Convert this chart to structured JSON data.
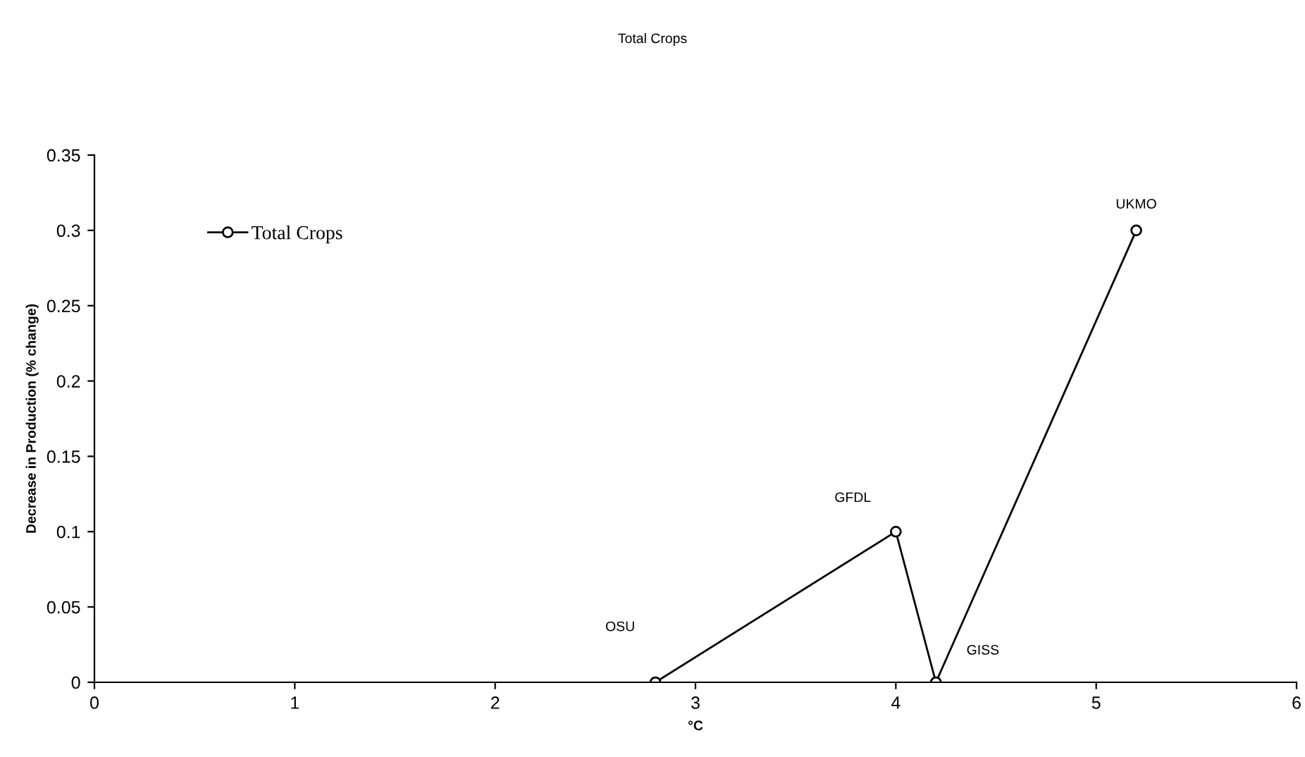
{
  "chart_data": {
    "type": "line",
    "title": "Total Crops",
    "xlabel": "°C",
    "ylabel": "Decrease in Production (% change)",
    "x": [
      2.8,
      4,
      4.2,
      5.2
    ],
    "series": [
      {
        "name": "Total Crops",
        "color": "#000000",
        "values": [
          0,
          0.1,
          0,
          0.3
        ]
      }
    ],
    "annotations": [
      "OSU",
      "GFDL",
      "GISS",
      "UKMO"
    ],
    "xlim": [
      0,
      6
    ],
    "xticks": [
      0,
      1,
      2,
      3,
      4,
      5,
      6
    ],
    "ylim": [
      0,
      0.35
    ],
    "yticks": [
      0,
      0.05,
      0.1,
      0.15,
      0.2,
      0.25,
      0.3,
      0.35
    ],
    "grid": false,
    "legend": "top left",
    "marker": "circle",
    "line_style": "solid"
  }
}
